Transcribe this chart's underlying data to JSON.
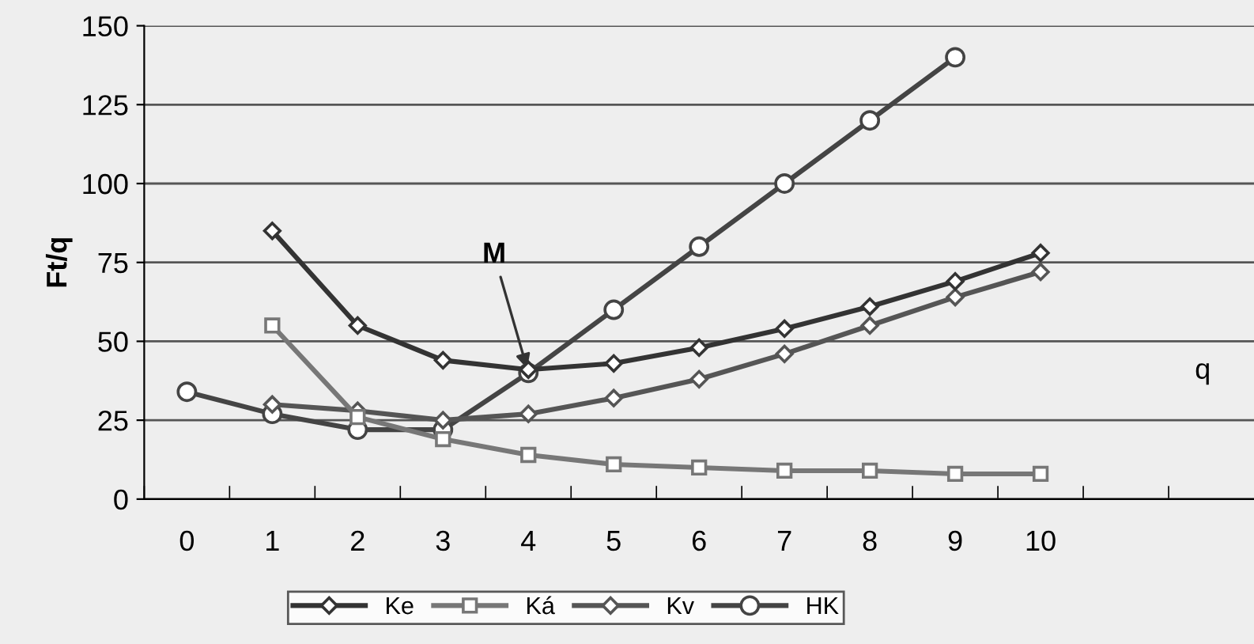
{
  "chart_data": {
    "type": "line",
    "ylabel": "Ft/q",
    "xlabel": "q",
    "categories": [
      "0",
      "1",
      "2",
      "3",
      "4",
      "5",
      "6",
      "7",
      "8",
      "9",
      "10"
    ],
    "series": [
      {
        "name": "Ke",
        "color": "#333333",
        "marker": "diamond",
        "values": [
          null,
          85,
          55,
          44,
          41,
          43,
          48,
          54,
          61,
          69,
          78
        ]
      },
      {
        "name": "Ká",
        "color": "#777777",
        "marker": "square",
        "values": [
          null,
          55,
          26,
          19,
          14,
          11,
          10,
          9,
          9,
          8,
          8
        ]
      },
      {
        "name": "Kv",
        "color": "#555555",
        "marker": "diamond",
        "values": [
          null,
          30,
          28,
          25,
          27,
          32,
          38,
          46,
          55,
          64,
          72
        ]
      },
      {
        "name": "HK",
        "color": "#444444",
        "marker": "circle",
        "values": [
          34,
          27,
          22,
          22,
          40,
          60,
          80,
          100,
          120,
          140,
          null
        ]
      }
    ],
    "ylim": [
      0,
      150
    ],
    "yticks": [
      0,
      25,
      50,
      75,
      100,
      125,
      150
    ],
    "grid": "y",
    "legend": "bottom",
    "annotations": [
      {
        "text": "M",
        "x": "4",
        "y": 40
      }
    ]
  }
}
